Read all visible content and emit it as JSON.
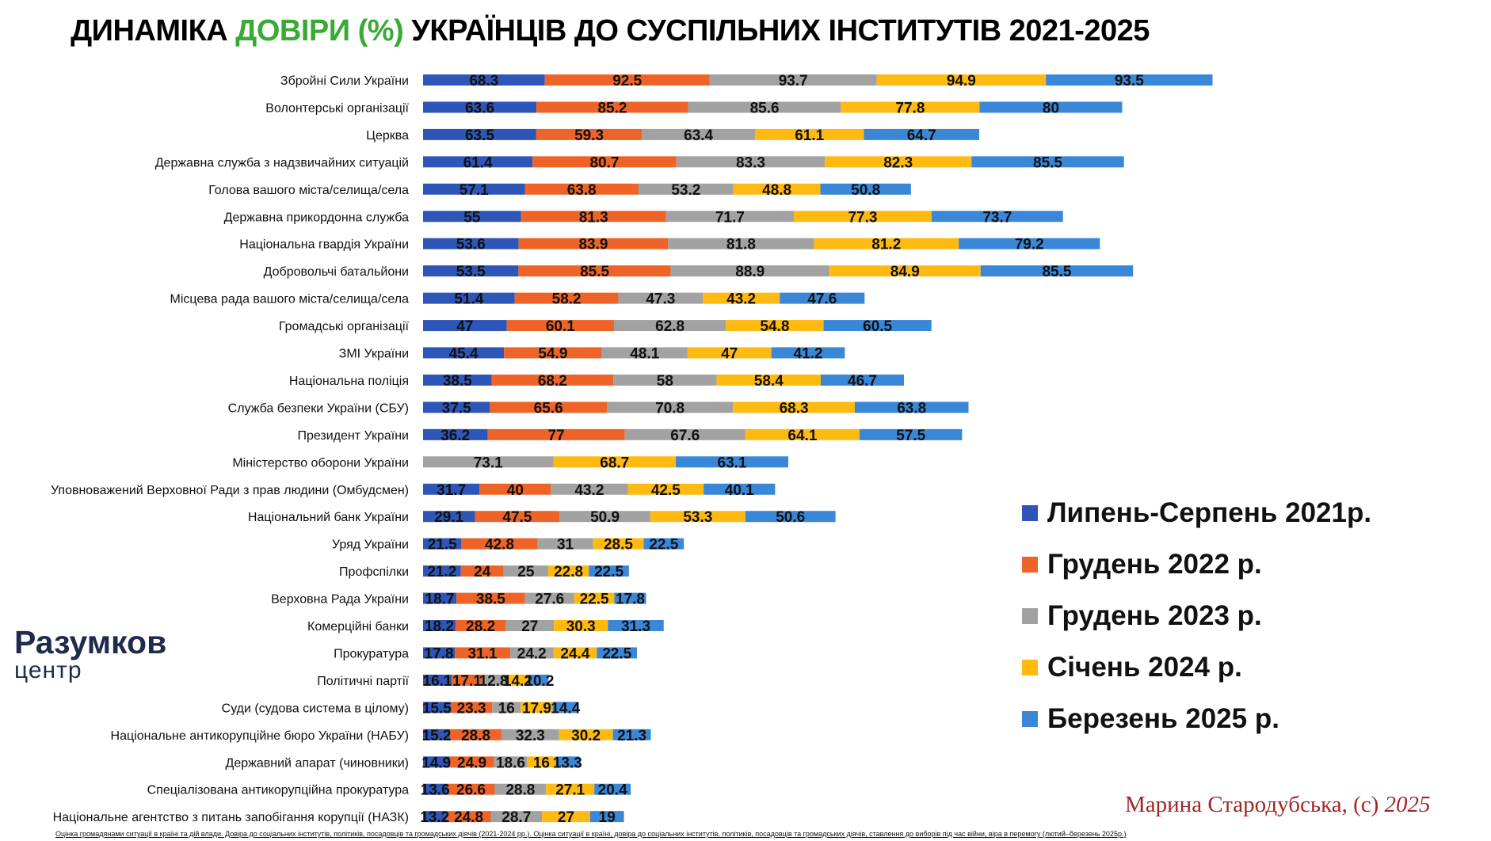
{
  "title": {
    "part1": "ДИНАМІКА ",
    "part2": "ДОВІРИ (%)",
    "part3": " УКРАЇНЦІВ ДО СУСПІЛЬНИХ ІНСТИТУТІВ 2021-2025"
  },
  "colors": {
    "title_highlight": "#3aa935",
    "series": [
      "#2e55b8",
      "#ee6428",
      "#a2a2a2",
      "#ffba12",
      "#3a87d8"
    ]
  },
  "chart_data": {
    "type": "bar",
    "orientation": "horizontal",
    "stacked": true,
    "categories": [
      "Збройні Сили України",
      "Волонтерські організації",
      "Церква",
      "Державна служба з надзвичайних ситуацій",
      "Голова вашого міста/селища/села",
      "Державна прикордонна служба",
      "Національна гвардія України",
      "Добровольчі батальйони",
      "Місцева рада вашого міста/селища/села",
      "Громадські організації",
      "ЗМІ України",
      "Національна поліція",
      "Служба безпеки України (СБУ)",
      "Президент України",
      "Міністерство оборони України",
      "Уповноважений Верховної Ради з прав людини (Омбудсмен)",
      "Національний банк України",
      "Уряд України",
      "Профспілки",
      "Верховна Рада України",
      "Комерційні банки",
      "Прокуратура",
      "Політичні партії",
      "Суди (судова система в цілому)",
      "Національне антикорупційне бюро України (НАБУ)",
      "Державний апарат (чиновники)",
      "Спеціалізована антикорупційна прокуратура",
      "Національне агентство з питань запобігання корупції (НАЗК)"
    ],
    "series": [
      {
        "name": "Липень-Серпень 2021р.",
        "values": [
          68.3,
          63.6,
          63.5,
          61.4,
          57.1,
          55,
          53.6,
          53.5,
          51.4,
          47,
          45.4,
          38.5,
          37.5,
          36.2,
          null,
          31.7,
          29.1,
          21.5,
          21.2,
          18.7,
          18.2,
          17.8,
          16.1,
          15.5,
          15.2,
          14.9,
          13.6,
          13.2
        ]
      },
      {
        "name": "Грудень 2022 р.",
        "values": [
          92.5,
          85.2,
          59.3,
          80.7,
          63.8,
          81.3,
          83.9,
          85.5,
          58.2,
          60.1,
          54.9,
          68.2,
          65.6,
          77,
          null,
          40,
          47.5,
          42.8,
          24,
          38.5,
          28.2,
          31.1,
          17.1,
          23.3,
          28.8,
          24.9,
          26.6,
          24.8
        ]
      },
      {
        "name": "Грудень 2023 р.",
        "values": [
          93.7,
          85.6,
          63.4,
          83.3,
          53.2,
          71.7,
          81.8,
          88.9,
          47.3,
          62.8,
          48.1,
          58,
          70.8,
          67.6,
          73.1,
          43.2,
          50.9,
          31,
          25,
          27.6,
          27,
          24.2,
          12.8,
          16,
          32.3,
          18.6,
          28.8,
          28.7
        ]
      },
      {
        "name": "Січень 2024 р.",
        "values": [
          94.9,
          77.8,
          61.1,
          82.3,
          48.8,
          77.3,
          81.2,
          84.9,
          43.2,
          54.8,
          47,
          58.4,
          68.3,
          64.1,
          68.7,
          42.5,
          53.3,
          28.5,
          22.8,
          22.5,
          30.3,
          24.4,
          14.2,
          17.9,
          30.2,
          16,
          27.1,
          27
        ]
      },
      {
        "name": "Березень 2025 р.",
        "values": [
          93.5,
          80,
          64.7,
          85.5,
          50.8,
          73.7,
          79.2,
          85.5,
          47.6,
          60.5,
          41.2,
          46.7,
          63.8,
          57.5,
          63.1,
          40.1,
          50.6,
          22.5,
          22.5,
          17.8,
          31.3,
          22.5,
          10.2,
          14.4,
          21.3,
          13.3,
          20.4,
          19
        ]
      }
    ],
    "legend_position": "right",
    "grid": false,
    "xlabel": "",
    "ylabel": ""
  },
  "logo": {
    "line1": "Разумков",
    "line2": "центр"
  },
  "author": {
    "name": "Марина Стародубська, (с) ",
    "year": "2025"
  },
  "footnote": "Оцінка громадянами ситуації в країні та дій влади. Довіра до соціальних інститутів, політиків, посадовців та громадських діячів (2021-2024 рр.). Оцінка ситуації в країні, довіра до соціальних інститутів, політиків, посадовців та громадських діячів, ставлення до виборів під час війни, віра в перемогу (лютий–березень 2025р.)"
}
